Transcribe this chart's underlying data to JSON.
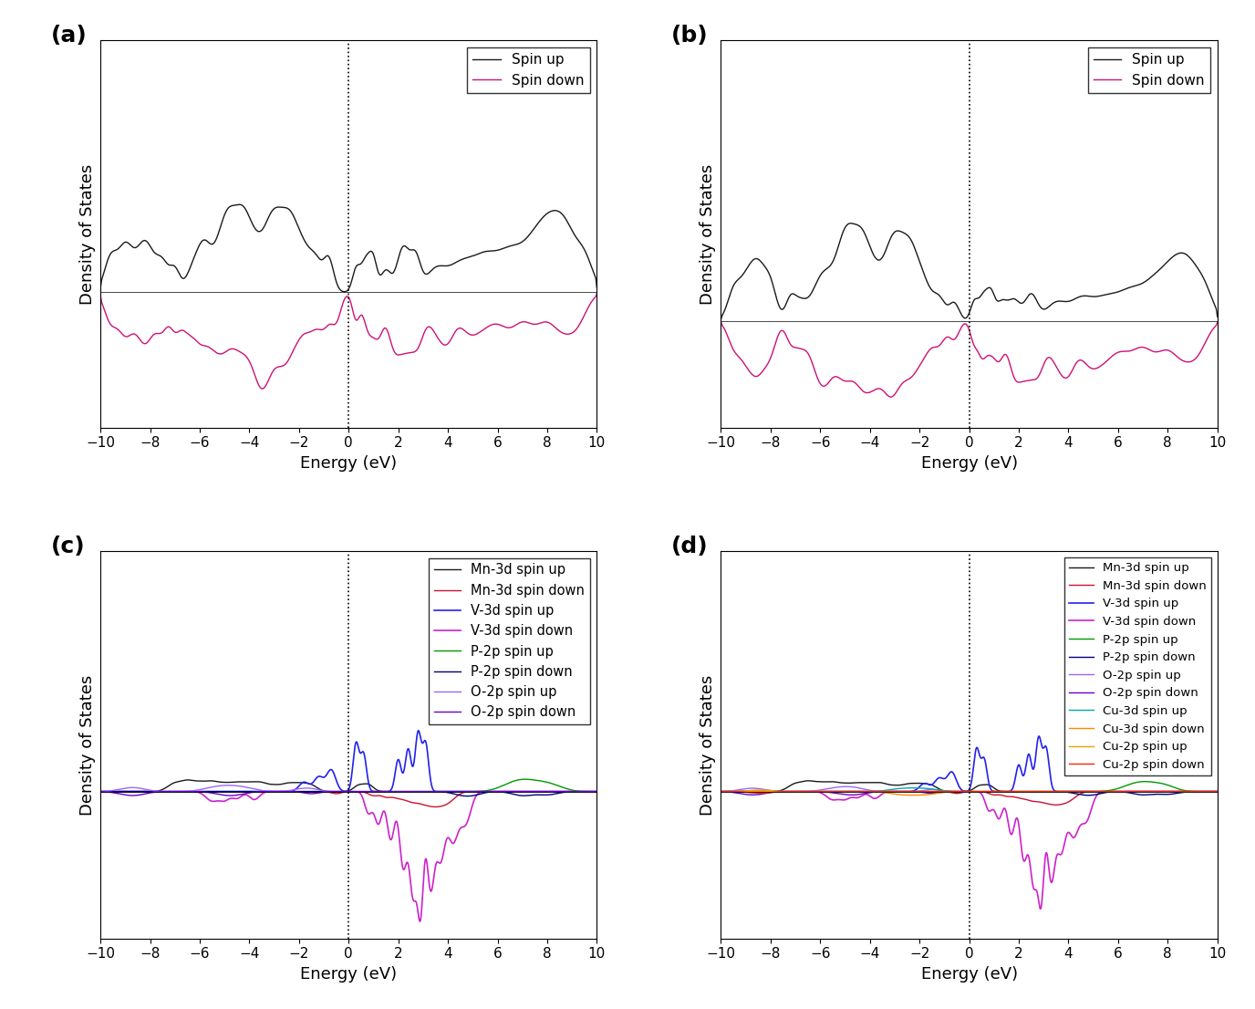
{
  "xlim": [
    -10,
    10
  ],
  "xlabel": "Energy (eV)",
  "ylabel": "Density of States",
  "xticks": [
    -10,
    -8,
    -6,
    -4,
    -2,
    0,
    2,
    4,
    6,
    8,
    10
  ],
  "panel_labels": [
    "(a)",
    "(b)",
    "(c)",
    "(d)"
  ],
  "panel_label_fontsize": 18,
  "axis_label_fontsize": 13,
  "tick_fontsize": 11,
  "legend_fontsize": 11,
  "colors": {
    "spin_up": "#1a1a1a",
    "spin_down": "#CC1177",
    "mn3d_up": "#1a1a1a",
    "mn3d_down": "#CC1133",
    "v3d_up": "#2222EE",
    "v3d_down": "#CC22CC",
    "p2p_up": "#009900",
    "p2p_down": "#000080",
    "o2p_up": "#9966FF",
    "o2p_down": "#6600CC",
    "cu3d_up": "#00AAAA",
    "cu3d_down": "#FF8800",
    "cu2p_up": "#DDAA00",
    "cu2p_down": "#FF2200"
  }
}
